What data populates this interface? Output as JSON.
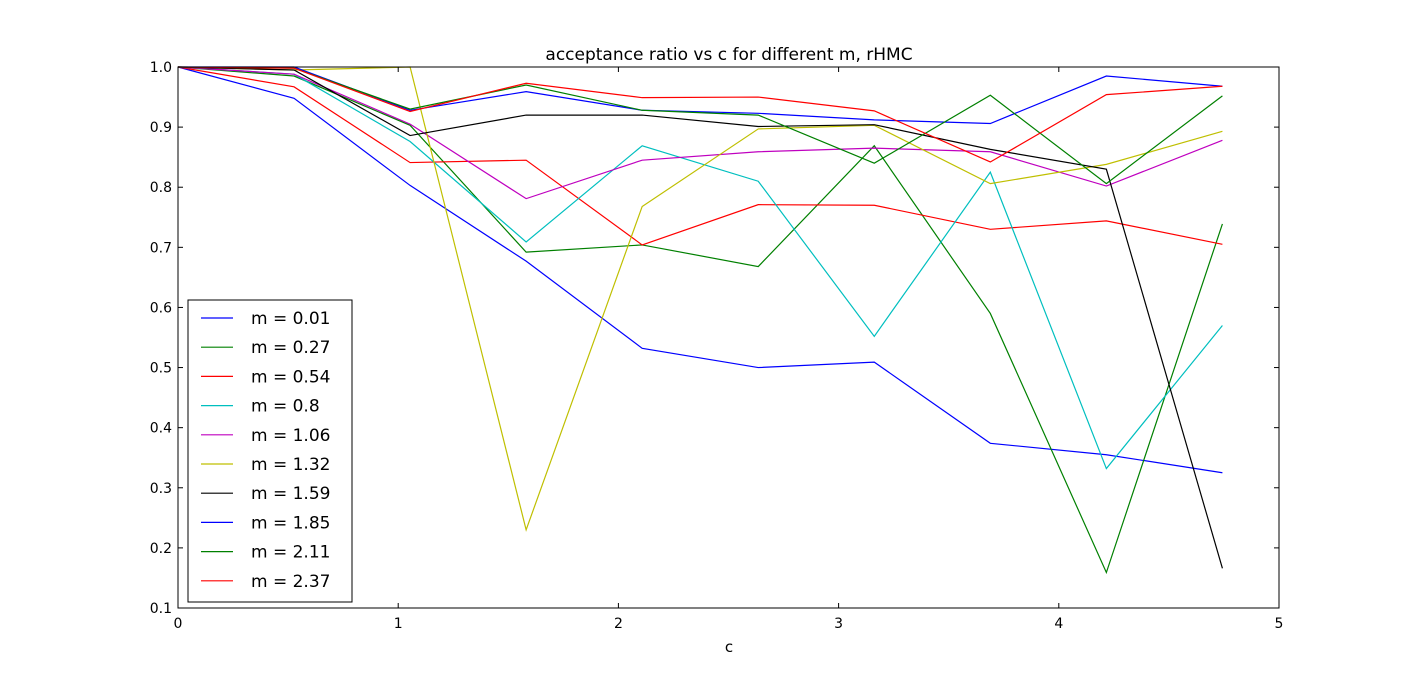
{
  "chart_data": {
    "type": "line",
    "title": "acceptance ratio vs c for different m, rHMC",
    "xlabel": "c",
    "ylabel": "",
    "xlim": [
      0,
      5
    ],
    "ylim": [
      0.1,
      1.0
    ],
    "xticks": [
      0,
      1,
      2,
      3,
      4,
      5
    ],
    "yticks": [
      0.1,
      0.2,
      0.3,
      0.4,
      0.5,
      0.6,
      0.7,
      0.8,
      0.9,
      1.0
    ],
    "xtick_labels": [
      "0",
      "1",
      "2",
      "3",
      "4",
      "5"
    ],
    "ytick_labels": [
      "0.1",
      "0.2",
      "0.3",
      "0.4",
      "0.5",
      "0.6",
      "0.7",
      "0.8",
      "0.9",
      "1.0"
    ],
    "grid": false,
    "legend_position": "lower-left",
    "x": [
      0.0,
      0.527,
      1.054,
      1.581,
      2.108,
      2.635,
      3.162,
      3.689,
      4.216,
      4.743
    ],
    "series": [
      {
        "name": "m = 0.01",
        "color": "#0000ff",
        "values": [
          1.0,
          0.948,
          0.803,
          0.677,
          0.532,
          0.5,
          0.509,
          0.374,
          0.355,
          0.325
        ]
      },
      {
        "name": "m = 0.27",
        "color": "#008000",
        "values": [
          1.0,
          0.985,
          0.903,
          0.692,
          0.704,
          0.668,
          0.869,
          0.59,
          0.159,
          0.739
        ]
      },
      {
        "name": "m = 0.54",
        "color": "#ff0000",
        "values": [
          1.0,
          0.967,
          0.841,
          0.845,
          0.704,
          0.771,
          0.77,
          0.73,
          0.744,
          0.705
        ]
      },
      {
        "name": "m = 0.8",
        "color": "#00bfbf",
        "values": [
          1.0,
          0.988,
          0.876,
          0.709,
          0.869,
          0.81,
          0.552,
          0.825,
          0.332,
          0.57
        ]
      },
      {
        "name": "m = 1.06",
        "color": "#bf00bf",
        "values": [
          1.0,
          0.988,
          0.905,
          0.781,
          0.845,
          0.859,
          0.865,
          0.859,
          0.802,
          0.878
        ]
      },
      {
        "name": "m = 1.32",
        "color": "#bfbf00",
        "values": [
          1.0,
          0.995,
          1.0,
          0.23,
          0.768,
          0.897,
          0.903,
          0.806,
          0.838,
          0.893
        ]
      },
      {
        "name": "m = 1.59",
        "color": "#000000",
        "values": [
          1.0,
          0.995,
          0.886,
          0.92,
          0.92,
          0.901,
          0.904,
          0.863,
          0.83,
          0.166
        ]
      },
      {
        "name": "m = 1.85",
        "color": "#0000ff",
        "values": [
          1.0,
          1.0,
          0.928,
          0.959,
          0.928,
          0.923,
          0.912,
          0.906,
          0.985,
          0.968
        ]
      },
      {
        "name": "m = 2.11",
        "color": "#008000",
        "values": [
          1.0,
          0.998,
          0.93,
          0.97,
          0.928,
          0.92,
          0.84,
          0.953,
          0.806,
          0.952
        ]
      },
      {
        "name": "m = 2.37",
        "color": "#ff0000",
        "values": [
          1.0,
          0.998,
          0.926,
          0.973,
          0.949,
          0.95,
          0.927,
          0.842,
          0.954,
          0.968
        ]
      }
    ]
  }
}
